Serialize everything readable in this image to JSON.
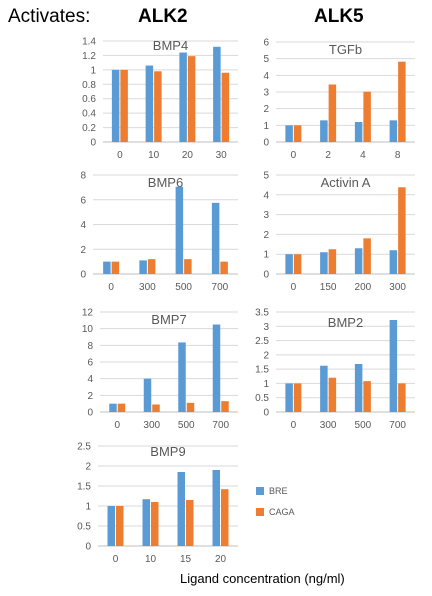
{
  "header": {
    "activates_label": "Activates:",
    "alk2_label": "ALK2",
    "alk5_label": "ALK5"
  },
  "legend": [
    {
      "name": "BRE",
      "color": "#5B9BD5"
    },
    {
      "name": "CAGA",
      "color": "#ED7D31"
    }
  ],
  "x_axis_title": "Ligand concentration (ng/ml)",
  "chart_data": [
    {
      "type": "bar",
      "title": "BMP4",
      "categories": [
        "0",
        "10",
        "20",
        "30"
      ],
      "ylim": [
        0,
        1.4
      ],
      "yticks": [
        "0",
        "0.2",
        "0.4",
        "0.6",
        "0.8",
        "1",
        "1.2",
        "1.4"
      ],
      "series": [
        {
          "name": "BRE",
          "values": [
            1.0,
            1.06,
            1.24,
            1.32
          ]
        },
        {
          "name": "CAGA",
          "values": [
            1.0,
            0.98,
            1.19,
            0.96
          ]
        }
      ]
    },
    {
      "type": "bar",
      "title": "TGFb",
      "categories": [
        "0",
        "2",
        "4",
        "8"
      ],
      "ylim": [
        0,
        6
      ],
      "yticks": [
        "0",
        "1",
        "2",
        "3",
        "4",
        "5",
        "6"
      ],
      "series": [
        {
          "name": "BRE",
          "values": [
            1.0,
            1.3,
            1.2,
            1.3
          ]
        },
        {
          "name": "CAGA",
          "values": [
            1.0,
            3.45,
            3.02,
            4.82
          ]
        }
      ]
    },
    {
      "type": "bar",
      "title": "BMP6",
      "categories": [
        "0",
        "300",
        "500",
        "700"
      ],
      "ylim": [
        0,
        8
      ],
      "yticks": [
        "0",
        "2",
        "4",
        "6",
        "8"
      ],
      "series": [
        {
          "name": "BRE",
          "values": [
            1.0,
            1.1,
            7.05,
            5.75
          ]
        },
        {
          "name": "CAGA",
          "values": [
            1.0,
            1.2,
            1.2,
            1.0
          ]
        }
      ]
    },
    {
      "type": "bar",
      "title": "Activin A",
      "categories": [
        "0",
        "150",
        "200",
        "300"
      ],
      "ylim": [
        0,
        5
      ],
      "yticks": [
        "0",
        "1",
        "2",
        "3",
        "4",
        "5"
      ],
      "series": [
        {
          "name": "BRE",
          "values": [
            1.0,
            1.1,
            1.3,
            1.2
          ]
        },
        {
          "name": "CAGA",
          "values": [
            1.0,
            1.25,
            1.8,
            4.38
          ]
        }
      ]
    },
    {
      "type": "bar",
      "title": "BMP7",
      "categories": [
        "0",
        "300",
        "500",
        "700"
      ],
      "ylim": [
        0,
        12
      ],
      "yticks": [
        "0",
        "2",
        "4",
        "6",
        "8",
        "10",
        "12"
      ],
      "series": [
        {
          "name": "BRE",
          "values": [
            1.0,
            4.0,
            8.35,
            10.5
          ]
        },
        {
          "name": "CAGA",
          "values": [
            1.0,
            0.9,
            1.1,
            1.3
          ]
        }
      ]
    },
    {
      "type": "bar",
      "title": "BMP2",
      "categories": [
        "0",
        "300",
        "500",
        "700"
      ],
      "ylim": [
        0,
        3.5
      ],
      "yticks": [
        "0",
        "0.5",
        "1",
        "1.5",
        "2",
        "2.5",
        "3",
        "3.5"
      ],
      "series": [
        {
          "name": "BRE",
          "values": [
            1.0,
            1.62,
            1.68,
            3.22
          ]
        },
        {
          "name": "CAGA",
          "values": [
            1.0,
            1.2,
            1.08,
            1.0
          ]
        }
      ]
    },
    {
      "type": "bar",
      "title": "BMP9",
      "categories": [
        "0",
        "10",
        "15",
        "20"
      ],
      "ylim": [
        0,
        2.5
      ],
      "yticks": [
        "0",
        "0.5",
        "1",
        "1.5",
        "2",
        "2.5"
      ],
      "series": [
        {
          "name": "BRE",
          "values": [
            1.0,
            1.17,
            1.85,
            1.9
          ]
        },
        {
          "name": "CAGA",
          "values": [
            1.0,
            1.1,
            1.15,
            1.42
          ]
        }
      ]
    }
  ]
}
